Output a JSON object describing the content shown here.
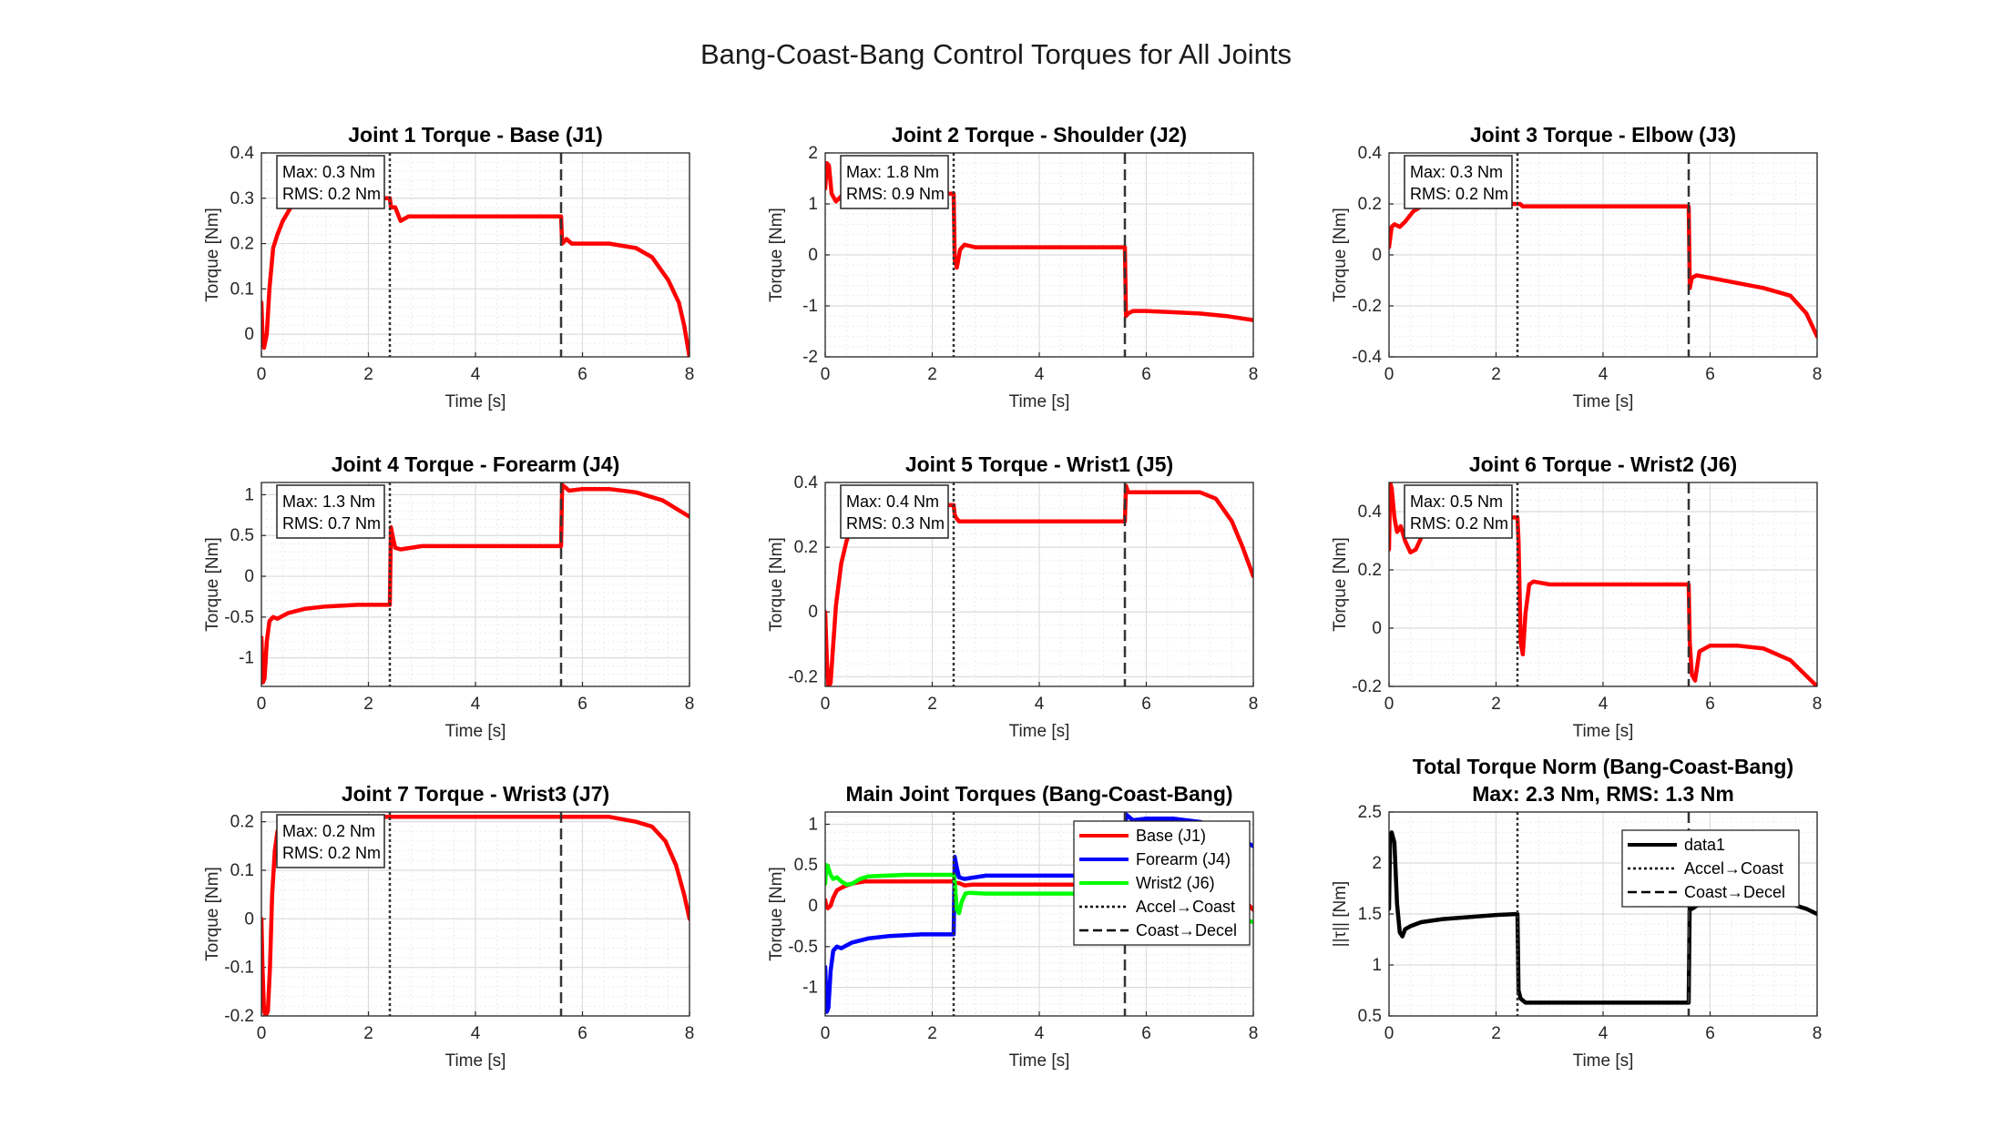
{
  "figure": {
    "title": "Bang-Coast-Bang Control Torques for All Joints"
  },
  "colors": {
    "red": "#ff0000",
    "blue": "#0000ff",
    "green": "#00ff00",
    "black": "#000000",
    "grid": "#dcdcdc",
    "axis": "#262626"
  },
  "chart_data": [
    {
      "type": "line",
      "title": "Joint 1 Torque - Base (J1)",
      "xlabel": "Time [s]",
      "ylabel": "Torque [Nm]",
      "xlim": [
        0,
        8
      ],
      "ylim": [
        -0.05,
        0.4
      ],
      "xticks": [
        "0",
        "2",
        "4",
        "6",
        "8"
      ],
      "yticks": [
        "0",
        "0.1",
        "0.2",
        "0.3",
        "0.4"
      ],
      "textbox": [
        "Max: 0.3 Nm",
        "RMS: 0.2 Nm"
      ],
      "phase_lines": [
        2.4,
        5.6
      ],
      "series": [
        {
          "color": "#ff0000",
          "x": [
            0,
            0.02,
            0.05,
            0.1,
            0.15,
            0.22,
            0.3,
            0.4,
            0.55,
            0.75,
            1.0,
            1.5,
            2.0,
            2.4,
            2.42,
            2.5,
            2.6,
            2.75,
            3.0,
            4.0,
            5.0,
            5.6,
            5.62,
            5.7,
            5.8,
            6.0,
            6.5,
            7.0,
            7.3,
            7.6,
            7.8,
            7.9,
            8.0
          ],
          "y": [
            0.07,
            0.0,
            -0.03,
            0.0,
            0.1,
            0.19,
            0.22,
            0.25,
            0.28,
            0.3,
            0.3,
            0.3,
            0.3,
            0.3,
            0.28,
            0.28,
            0.25,
            0.26,
            0.26,
            0.26,
            0.26,
            0.26,
            0.2,
            0.21,
            0.2,
            0.2,
            0.2,
            0.19,
            0.17,
            0.12,
            0.07,
            0.02,
            -0.05
          ]
        }
      ]
    },
    {
      "type": "line",
      "title": "Joint 2 Torque - Shoulder (J2)",
      "xlabel": "Time [s]",
      "ylabel": "Torque [Nm]",
      "xlim": [
        0,
        8
      ],
      "ylim": [
        -2,
        2
      ],
      "xticks": [
        "0",
        "2",
        "4",
        "6",
        "8"
      ],
      "yticks": [
        "-2",
        "-1",
        "0",
        "1",
        "2"
      ],
      "textbox": [
        "Max: 1.8 Nm",
        "RMS: 0.9 Nm"
      ],
      "phase_lines": [
        2.4,
        5.6
      ],
      "series": [
        {
          "color": "#ff0000",
          "x": [
            0,
            0.03,
            0.07,
            0.12,
            0.2,
            0.3,
            0.5,
            1.0,
            2.0,
            2.4,
            2.42,
            2.46,
            2.52,
            2.6,
            2.8,
            3.5,
            5.6,
            5.62,
            5.66,
            5.75,
            6.0,
            7.0,
            7.5,
            8.0
          ],
          "y": [
            1.3,
            1.8,
            1.75,
            1.2,
            1.05,
            1.15,
            1.2,
            1.2,
            1.2,
            1.2,
            -0.1,
            -0.25,
            0.1,
            0.2,
            0.15,
            0.15,
            0.15,
            -1.2,
            -1.15,
            -1.1,
            -1.1,
            -1.15,
            -1.2,
            -1.28
          ]
        }
      ]
    },
    {
      "type": "line",
      "title": "Joint 3 Torque - Elbow (J3)",
      "xlabel": "Time [s]",
      "ylabel": "Torque [Nm]",
      "xlim": [
        0,
        8
      ],
      "ylim": [
        -0.4,
        0.4
      ],
      "xticks": [
        "0",
        "2",
        "4",
        "6",
        "8"
      ],
      "yticks": [
        "-0.4",
        "-0.2",
        "0",
        "0.2",
        "0.4"
      ],
      "textbox": [
        "Max: 0.3 Nm",
        "RMS: 0.2 Nm"
      ],
      "phase_lines": [
        2.4,
        5.6
      ],
      "series": [
        {
          "color": "#ff0000",
          "x": [
            0,
            0.05,
            0.1,
            0.2,
            0.3,
            0.45,
            0.6,
            0.8,
            1.0,
            1.5,
            2.0,
            2.4,
            2.42,
            2.45,
            2.5,
            3.0,
            4.0,
            5.0,
            5.6,
            5.62,
            5.66,
            5.75,
            6.0,
            6.5,
            7.0,
            7.5,
            7.8,
            8.0
          ],
          "y": [
            0.03,
            0.11,
            0.12,
            0.11,
            0.13,
            0.17,
            0.19,
            0.2,
            0.2,
            0.2,
            0.2,
            0.2,
            0.2,
            0.2,
            0.19,
            0.19,
            0.19,
            0.19,
            0.19,
            -0.13,
            -0.09,
            -0.08,
            -0.09,
            -0.11,
            -0.13,
            -0.16,
            -0.23,
            -0.32
          ]
        }
      ]
    },
    {
      "type": "line",
      "title": "Joint 4 Torque - Forearm (J4)",
      "xlabel": "Time [s]",
      "ylabel": "Torque [Nm]",
      "xlim": [
        0,
        8
      ],
      "ylim": [
        -1.35,
        1.15
      ],
      "xticks": [
        "0",
        "2",
        "4",
        "6",
        "8"
      ],
      "yticks": [
        "-1",
        "-0.5",
        "0",
        "0.5",
        "1"
      ],
      "textbox": [
        "Max: 1.3 Nm",
        "RMS: 0.7 Nm"
      ],
      "phase_lines": [
        2.4,
        5.6
      ],
      "series": [
        {
          "color": "#ff0000",
          "x": [
            0,
            0.03,
            0.06,
            0.1,
            0.15,
            0.22,
            0.3,
            0.5,
            0.8,
            1.2,
            1.8,
            2.4,
            2.42,
            2.45,
            2.5,
            2.6,
            3.0,
            4.0,
            5.0,
            5.6,
            5.62,
            5.66,
            5.75,
            6.0,
            6.5,
            7.0,
            7.5,
            8.0
          ],
          "y": [
            -0.75,
            -1.3,
            -1.25,
            -0.8,
            -0.55,
            -0.5,
            -0.52,
            -0.45,
            -0.4,
            -0.37,
            -0.35,
            -0.35,
            0.6,
            0.5,
            0.35,
            0.33,
            0.37,
            0.37,
            0.37,
            0.37,
            1.12,
            1.1,
            1.05,
            1.07,
            1.07,
            1.03,
            0.93,
            0.73
          ]
        }
      ]
    },
    {
      "type": "line",
      "title": "Joint 5 Torque - Wrist1 (J5)",
      "xlabel": "Time [s]",
      "ylabel": "Torque [Nm]",
      "xlim": [
        0,
        8
      ],
      "ylim": [
        -0.23,
        0.4
      ],
      "xticks": [
        "0",
        "2",
        "4",
        "6",
        "8"
      ],
      "yticks": [
        "-0.2",
        "0",
        "0.2",
        "0.4"
      ],
      "textbox": [
        "Max: 0.4 Nm",
        "RMS: 0.3 Nm"
      ],
      "phase_lines": [
        2.4,
        5.6
      ],
      "series": [
        {
          "color": "#ff0000",
          "x": [
            0,
            0.03,
            0.06,
            0.1,
            0.15,
            0.2,
            0.3,
            0.4,
            0.5,
            0.7,
            1.0,
            2.0,
            2.4,
            2.42,
            2.45,
            2.5,
            2.6,
            3.0,
            4.0,
            5.0,
            5.6,
            5.62,
            5.66,
            5.75,
            6.0,
            7.0,
            7.3,
            7.6,
            7.8,
            8.0
          ],
          "y": [
            0.0,
            -0.15,
            -0.23,
            -0.22,
            -0.1,
            0.02,
            0.15,
            0.22,
            0.26,
            0.3,
            0.32,
            0.33,
            0.33,
            0.3,
            0.29,
            0.28,
            0.28,
            0.28,
            0.28,
            0.28,
            0.28,
            0.39,
            0.37,
            0.37,
            0.37,
            0.37,
            0.35,
            0.28,
            0.2,
            0.11
          ]
        }
      ]
    },
    {
      "type": "line",
      "title": "Joint 6 Torque - Wrist2 (J6)",
      "xlabel": "Time [s]",
      "ylabel": "Torque [Nm]",
      "xlim": [
        0,
        8
      ],
      "ylim": [
        -0.2,
        0.5
      ],
      "xticks": [
        "0",
        "2",
        "4",
        "6",
        "8"
      ],
      "yticks": [
        "-0.2",
        "0",
        "0.2",
        "0.4"
      ],
      "textbox": [
        "Max: 0.5 Nm",
        "RMS: 0.2 Nm"
      ],
      "phase_lines": [
        2.4,
        5.6
      ],
      "series": [
        {
          "color": "#ff0000",
          "x": [
            0,
            0.02,
            0.05,
            0.1,
            0.15,
            0.22,
            0.3,
            0.4,
            0.5,
            0.65,
            0.8,
            1.5,
            2.4,
            2.42,
            2.46,
            2.5,
            2.55,
            2.62,
            2.7,
            3.0,
            4.0,
            5.0,
            5.6,
            5.62,
            5.66,
            5.72,
            5.8,
            6.0,
            6.5,
            7.0,
            7.5,
            8.0
          ],
          "y": [
            0.27,
            0.5,
            0.48,
            0.38,
            0.33,
            0.35,
            0.3,
            0.26,
            0.27,
            0.33,
            0.36,
            0.38,
            0.38,
            0.3,
            -0.05,
            -0.09,
            0.05,
            0.15,
            0.16,
            0.15,
            0.15,
            0.15,
            0.15,
            -0.05,
            -0.16,
            -0.18,
            -0.08,
            -0.06,
            -0.06,
            -0.07,
            -0.11,
            -0.2
          ]
        }
      ]
    },
    {
      "type": "line",
      "title": "Joint 7 Torque - Wrist3 (J7)",
      "xlabel": "Time [s]",
      "ylabel": "Torque [Nm]",
      "xlim": [
        0,
        8
      ],
      "ylim": [
        -0.2,
        0.22
      ],
      "xticks": [
        "0",
        "2",
        "4",
        "6",
        "8"
      ],
      "yticks": [
        "-0.2",
        "-0.1",
        "0",
        "0.1",
        "0.2"
      ],
      "textbox": [
        "Max: 0.2 Nm",
        "RMS: 0.2 Nm"
      ],
      "phase_lines": [
        2.4,
        5.6
      ],
      "series": [
        {
          "color": "#ff0000",
          "x": [
            0,
            0.02,
            0.05,
            0.08,
            0.12,
            0.16,
            0.2,
            0.25,
            0.3,
            0.4,
            0.6,
            1.0,
            2.0,
            2.4,
            4.0,
            5.6,
            6.0,
            6.5,
            7.0,
            7.3,
            7.55,
            7.75,
            7.9,
            8.0
          ],
          "y": [
            0.0,
            -0.1,
            -0.19,
            -0.2,
            -0.19,
            -0.1,
            0.05,
            0.14,
            0.18,
            0.2,
            0.21,
            0.21,
            0.21,
            0.21,
            0.21,
            0.21,
            0.21,
            0.21,
            0.2,
            0.19,
            0.16,
            0.11,
            0.05,
            0.0
          ]
        }
      ]
    },
    {
      "type": "line",
      "title": "Main Joint Torques (Bang-Coast-Bang)",
      "xlabel": "Time [s]",
      "ylabel": "Torque [Nm]",
      "xlim": [
        0,
        8
      ],
      "ylim": [
        -1.35,
        1.15
      ],
      "xticks": [
        "0",
        "2",
        "4",
        "6",
        "8"
      ],
      "yticks": [
        "-1",
        "-0.5",
        "0",
        "0.5",
        "1"
      ],
      "phase_lines": [
        2.4,
        5.6
      ],
      "legend": {
        "position": "right",
        "entries": [
          {
            "label": "Base (J1)",
            "color": "#ff0000",
            "style": "solid"
          },
          {
            "label": "Forearm (J4)",
            "color": "#0000ff",
            "style": "solid"
          },
          {
            "label": "Wrist2 (J6)",
            "color": "#00ff00",
            "style": "solid"
          },
          {
            "label": "Accel→Coast",
            "color": "#000000",
            "style": "dotted"
          },
          {
            "label": "Coast→Decel",
            "color": "#000000",
            "style": "dashed"
          }
        ]
      },
      "series": [
        {
          "name": "Base (J1)",
          "color": "#ff0000",
          "x": [
            0,
            0.02,
            0.05,
            0.1,
            0.15,
            0.22,
            0.3,
            0.4,
            0.55,
            0.75,
            1.0,
            1.5,
            2.0,
            2.4,
            2.42,
            2.5,
            2.6,
            2.75,
            3.0,
            4.0,
            5.0,
            5.6,
            5.62,
            5.7,
            5.8,
            6.0,
            6.5,
            7.0,
            7.3,
            7.6,
            7.8,
            7.9,
            8.0
          ],
          "y": [
            0.07,
            0.0,
            -0.03,
            0.0,
            0.1,
            0.19,
            0.22,
            0.25,
            0.28,
            0.3,
            0.3,
            0.3,
            0.3,
            0.3,
            0.28,
            0.28,
            0.25,
            0.26,
            0.26,
            0.26,
            0.26,
            0.26,
            0.2,
            0.21,
            0.2,
            0.2,
            0.2,
            0.19,
            0.17,
            0.12,
            0.07,
            0.02,
            -0.05
          ]
        },
        {
          "name": "Forearm (J4)",
          "color": "#0000ff",
          "x": [
            0,
            0.03,
            0.06,
            0.1,
            0.15,
            0.22,
            0.3,
            0.5,
            0.8,
            1.2,
            1.8,
            2.4,
            2.42,
            2.45,
            2.5,
            2.6,
            3.0,
            4.0,
            5.0,
            5.6,
            5.62,
            5.66,
            5.75,
            6.0,
            6.5,
            7.0,
            7.5,
            8.0
          ],
          "y": [
            -0.75,
            -1.3,
            -1.25,
            -0.8,
            -0.55,
            -0.5,
            -0.52,
            -0.45,
            -0.4,
            -0.37,
            -0.35,
            -0.35,
            0.6,
            0.5,
            0.35,
            0.33,
            0.37,
            0.37,
            0.37,
            0.37,
            1.12,
            1.1,
            1.05,
            1.07,
            1.07,
            1.03,
            0.93,
            0.73
          ]
        },
        {
          "name": "Wrist2 (J6)",
          "color": "#00ff00",
          "x": [
            0,
            0.02,
            0.05,
            0.1,
            0.15,
            0.22,
            0.3,
            0.4,
            0.5,
            0.65,
            0.8,
            1.5,
            2.4,
            2.42,
            2.46,
            2.5,
            2.55,
            2.62,
            2.7,
            3.0,
            4.0,
            5.0,
            5.6,
            5.62,
            5.66,
            5.72,
            5.8,
            6.0,
            6.5,
            7.0,
            7.5,
            8.0
          ],
          "y": [
            0.27,
            0.5,
            0.48,
            0.38,
            0.33,
            0.35,
            0.3,
            0.26,
            0.27,
            0.33,
            0.36,
            0.38,
            0.38,
            0.3,
            -0.05,
            -0.09,
            0.05,
            0.15,
            0.16,
            0.15,
            0.15,
            0.15,
            0.15,
            -0.05,
            -0.16,
            -0.18,
            -0.08,
            -0.06,
            -0.06,
            -0.07,
            -0.11,
            -0.2
          ]
        }
      ]
    },
    {
      "type": "line",
      "title": "Total Torque Norm (Bang-Coast-Bang)",
      "subtitle": "Max: 2.3 Nm, RMS: 1.3 Nm",
      "xlabel": "Time [s]",
      "ylabel": "||τ|| [Nm]",
      "xlim": [
        0,
        8
      ],
      "ylim": [
        0.5,
        2.5
      ],
      "xticks": [
        "0",
        "2",
        "4",
        "6",
        "8"
      ],
      "yticks": [
        "0.5",
        "1",
        "1.5",
        "2",
        "2.5"
      ],
      "phase_lines": [
        2.4,
        5.6
      ],
      "legend": {
        "position": "top-right",
        "entries": [
          {
            "label": "data1",
            "color": "#000000",
            "style": "solid"
          },
          {
            "label": "Accel→Coast",
            "color": "#000000",
            "style": "dotted"
          },
          {
            "label": "Coast→Decel",
            "color": "#000000",
            "style": "dashed"
          }
        ]
      },
      "series": [
        {
          "name": "data1",
          "color": "#000000",
          "x": [
            0,
            0.02,
            0.05,
            0.1,
            0.15,
            0.2,
            0.25,
            0.3,
            0.4,
            0.6,
            1.0,
            1.5,
            2.0,
            2.4,
            2.42,
            2.46,
            2.55,
            3.0,
            4.0,
            5.0,
            5.6,
            5.62,
            5.66,
            5.75,
            5.85,
            6.0,
            7.0,
            7.5,
            7.8,
            8.0
          ],
          "y": [
            1.55,
            2.25,
            2.3,
            2.2,
            1.6,
            1.32,
            1.28,
            1.35,
            1.38,
            1.42,
            1.45,
            1.47,
            1.49,
            1.5,
            0.75,
            0.67,
            0.63,
            0.63,
            0.63,
            0.63,
            0.63,
            1.7,
            1.55,
            1.58,
            1.6,
            1.62,
            1.62,
            1.6,
            1.55,
            1.5
          ]
        }
      ]
    }
  ]
}
